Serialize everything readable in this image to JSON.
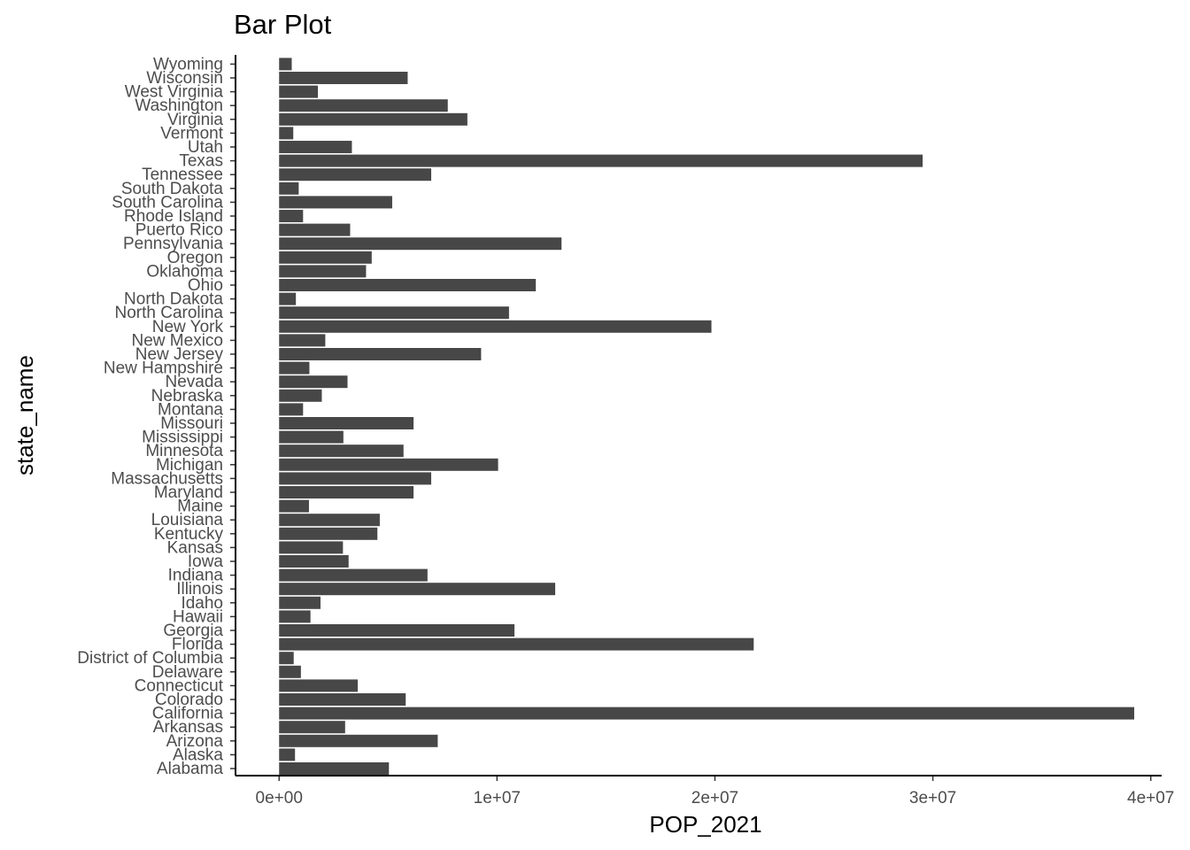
{
  "chart_data": {
    "type": "bar",
    "orientation": "horizontal",
    "title": "Bar Plot",
    "xlabel": "POP_2021",
    "ylabel": "state_name",
    "xlim": [
      -2000000,
      40500000
    ],
    "xticks": [
      0,
      10000000,
      20000000,
      30000000,
      40000000
    ],
    "xtick_labels": [
      "0e+00",
      "1e+07",
      "2e+07",
      "3e+07",
      "4e+07"
    ],
    "grid": false,
    "legend": "none",
    "bar_color": "#474747",
    "categories": [
      "Alabama",
      "Alaska",
      "Arizona",
      "Arkansas",
      "California",
      "Colorado",
      "Connecticut",
      "Delaware",
      "District of Columbia",
      "Florida",
      "Georgia",
      "Hawaii",
      "Idaho",
      "Illinois",
      "Indiana",
      "Iowa",
      "Kansas",
      "Kentucky",
      "Louisiana",
      "Maine",
      "Maryland",
      "Massachusetts",
      "Michigan",
      "Minnesota",
      "Mississippi",
      "Missouri",
      "Montana",
      "Nebraska",
      "Nevada",
      "New Hampshire",
      "New Jersey",
      "New Mexico",
      "New York",
      "North Carolina",
      "North Dakota",
      "Ohio",
      "Oklahoma",
      "Oregon",
      "Pennsylvania",
      "Puerto Rico",
      "Rhode Island",
      "South Carolina",
      "South Dakota",
      "Tennessee",
      "Texas",
      "Utah",
      "Vermont",
      "Virginia",
      "Washington",
      "West Virginia",
      "Wisconsin",
      "Wyoming"
    ],
    "values": [
      5040000,
      730000,
      7280000,
      3030000,
      39240000,
      5810000,
      3610000,
      1000000,
      670000,
      21780000,
      10800000,
      1440000,
      1900000,
      12670000,
      6810000,
      3190000,
      2930000,
      4510000,
      4620000,
      1370000,
      6170000,
      6980000,
      10050000,
      5710000,
      2950000,
      6170000,
      1100000,
      1960000,
      3140000,
      1390000,
      9270000,
      2120000,
      19840000,
      10550000,
      770000,
      11780000,
      3990000,
      4250000,
      12960000,
      3260000,
      1100000,
      5190000,
      900000,
      6980000,
      29530000,
      3340000,
      650000,
      8640000,
      7740000,
      1780000,
      5900000,
      580000
    ]
  }
}
